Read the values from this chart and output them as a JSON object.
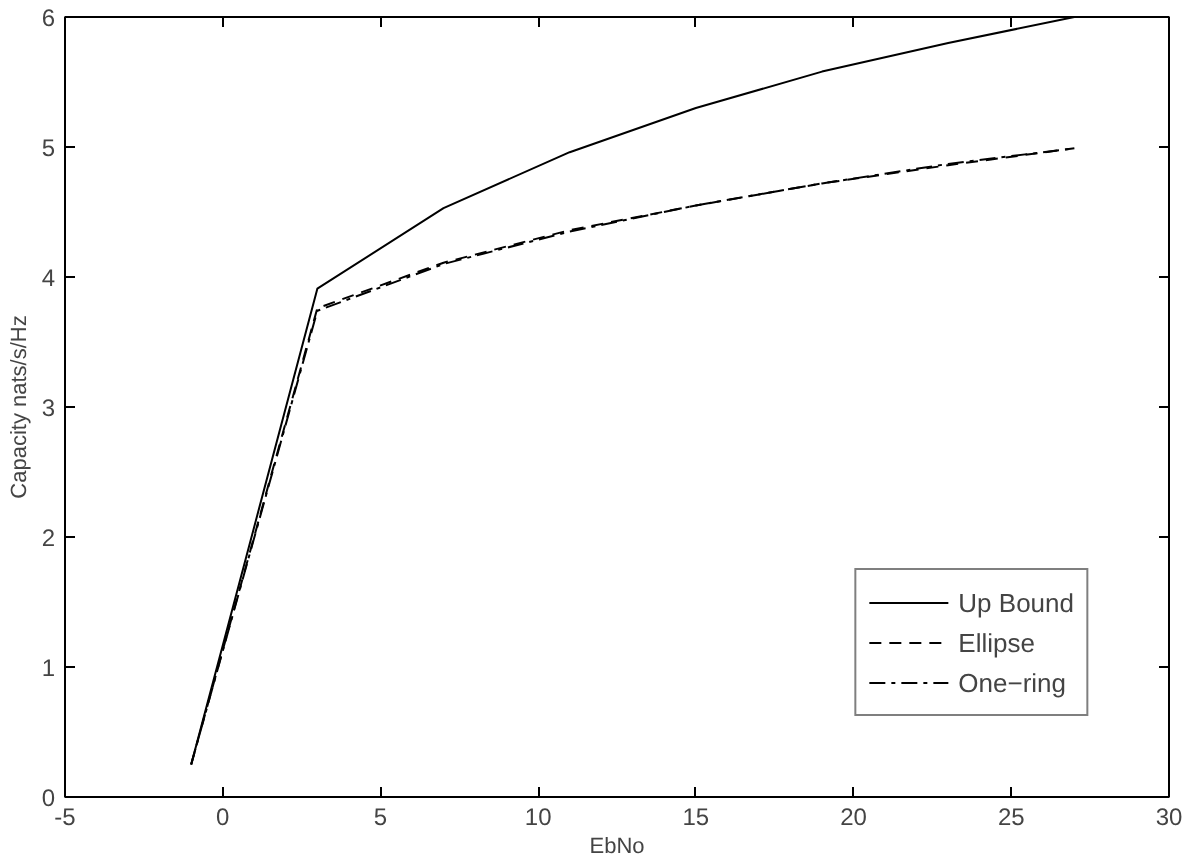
{
  "chart_data": {
    "type": "line",
    "xlabel": "EbNo",
    "ylabel": "Capacity nats/s/Hz",
    "x": [
      -1,
      3,
      7,
      11,
      15,
      19,
      23,
      27
    ],
    "series": [
      {
        "name": "Up Bound",
        "color": "#000000",
        "line_style": "solid",
        "values": [
          0.25,
          3.91,
          4.53,
          4.96,
          5.3,
          5.58,
          5.8,
          6.0
        ]
      },
      {
        "name": "Ellipse",
        "color": "#000000",
        "line_style": "dashed",
        "values": [
          0.25,
          3.76,
          4.11,
          4.36,
          4.55,
          4.72,
          4.86,
          4.99
        ]
      },
      {
        "name": "One−ring",
        "color": "#000000",
        "line_style": "dashdot",
        "values": [
          0.25,
          3.74,
          4.1,
          4.35,
          4.55,
          4.72,
          4.87,
          4.99
        ]
      }
    ],
    "xlim": [
      -5,
      30
    ],
    "xticks": [
      -5,
      0,
      5,
      10,
      15,
      20,
      25,
      30
    ],
    "ylim": [
      0,
      6
    ],
    "yticks": [
      0,
      1,
      2,
      3,
      4,
      5,
      6
    ],
    "grid": false,
    "legend": "bottom right",
    "marker": "none"
  }
}
